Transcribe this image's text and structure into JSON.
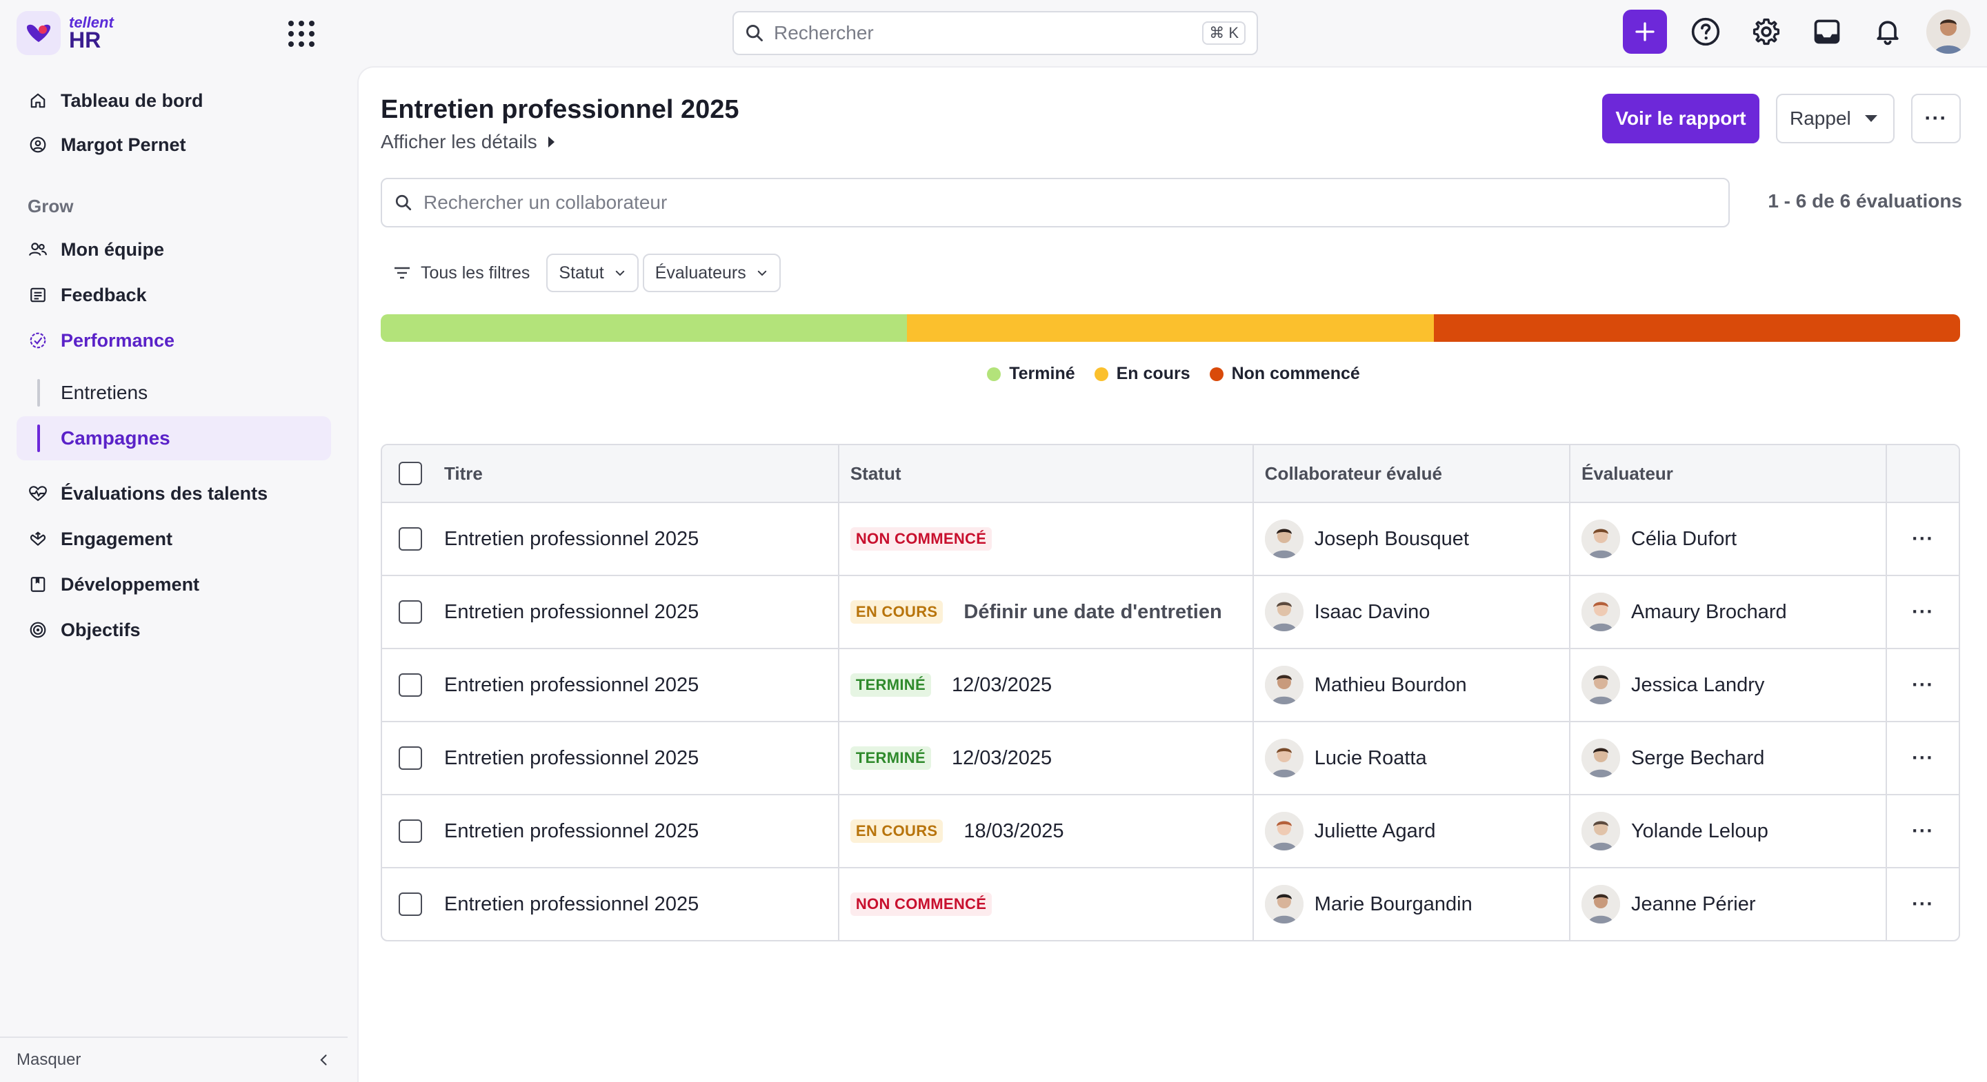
{
  "brand": {
    "small": "tellent",
    "big": "HR"
  },
  "search": {
    "placeholder": "Rechercher",
    "shortcut": "⌘ K"
  },
  "sidebar": {
    "top_items": [
      {
        "label": "Tableau de bord",
        "icon": "home-icon"
      },
      {
        "label": "Margot Pernet",
        "icon": "user-circle-icon"
      }
    ],
    "section": "Grow",
    "items": [
      {
        "label": "Mon équipe",
        "icon": "team-icon"
      },
      {
        "label": "Feedback",
        "icon": "feedback-icon"
      },
      {
        "label": "Performance",
        "icon": "performance-icon"
      }
    ],
    "sub_items": [
      {
        "label": "Entretiens",
        "active": false
      },
      {
        "label": "Campagnes",
        "active": true
      }
    ],
    "more_items": [
      {
        "label": "Évaluations des talents",
        "icon": "heartbeat-icon"
      },
      {
        "label": "Engagement",
        "icon": "engagement-icon"
      },
      {
        "label": "Développement",
        "icon": "book-icon"
      },
      {
        "label": "Objectifs",
        "icon": "target-icon"
      }
    ],
    "footer": "Masquer"
  },
  "page": {
    "title": "Entretien professionnel 2025",
    "details_link": "Afficher les détails",
    "report_button": "Voir le rapport",
    "reminder_button": "Rappel",
    "more_button": "···",
    "search_placeholder": "Rechercher un collaborateur",
    "count": "1 - 6 de 6 évaluations",
    "filters": {
      "all": "Tous les filtres",
      "status": "Statut",
      "evaluators": "Évaluateurs"
    }
  },
  "progress": {
    "segments": [
      {
        "label": "Terminé",
        "fraction": 0.3333,
        "color": "#b3e37a"
      },
      {
        "label": "En cours",
        "fraction": 0.3333,
        "color": "#fbc02d"
      },
      {
        "label": "Non commencé",
        "fraction": 0.3334,
        "color": "#d94a0a"
      }
    ]
  },
  "table": {
    "headers": {
      "title": "Titre",
      "status": "Statut",
      "collab": "Collaborateur évalué",
      "evaluator": "Évaluateur"
    },
    "rows": [
      {
        "title": "Entretien professionnel 2025",
        "status": "NON COMMENCÉ",
        "status_kind": "nc",
        "status_text": "",
        "collab": "Joseph Bousquet",
        "evaluator": "Célia Dufort",
        "action": "···"
      },
      {
        "title": "Entretien professionnel 2025",
        "status": "EN COURS",
        "status_kind": "ec",
        "status_text": "Définir une date d'entretien",
        "collab": "Isaac Davino",
        "evaluator": "Amaury Brochard",
        "action": "···"
      },
      {
        "title": "Entretien professionnel 2025",
        "status": "TERMINÉ",
        "status_kind": "tm",
        "status_text": "12/03/2025",
        "collab": "Mathieu Bourdon",
        "evaluator": "Jessica Landry",
        "action": "···"
      },
      {
        "title": "Entretien professionnel 2025",
        "status": "TERMINÉ",
        "status_kind": "tm",
        "status_text": "12/03/2025",
        "collab": "Lucie Roatta",
        "evaluator": "Serge Bechard",
        "action": "···"
      },
      {
        "title": "Entretien professionnel 2025",
        "status": "EN COURS",
        "status_kind": "ec",
        "status_text": "18/03/2025",
        "collab": "Juliette Agard",
        "evaluator": "Yolande Leloup",
        "action": "···"
      },
      {
        "title": "Entretien professionnel 2025",
        "status": "NON COMMENCÉ",
        "status_kind": "nc",
        "status_text": "",
        "collab": "Marie Bourgandin",
        "evaluator": "Jeanne Périer",
        "action": "···"
      }
    ]
  },
  "colors": {
    "accent": "#6d28d9",
    "accent_light": "#f0ebfb"
  }
}
